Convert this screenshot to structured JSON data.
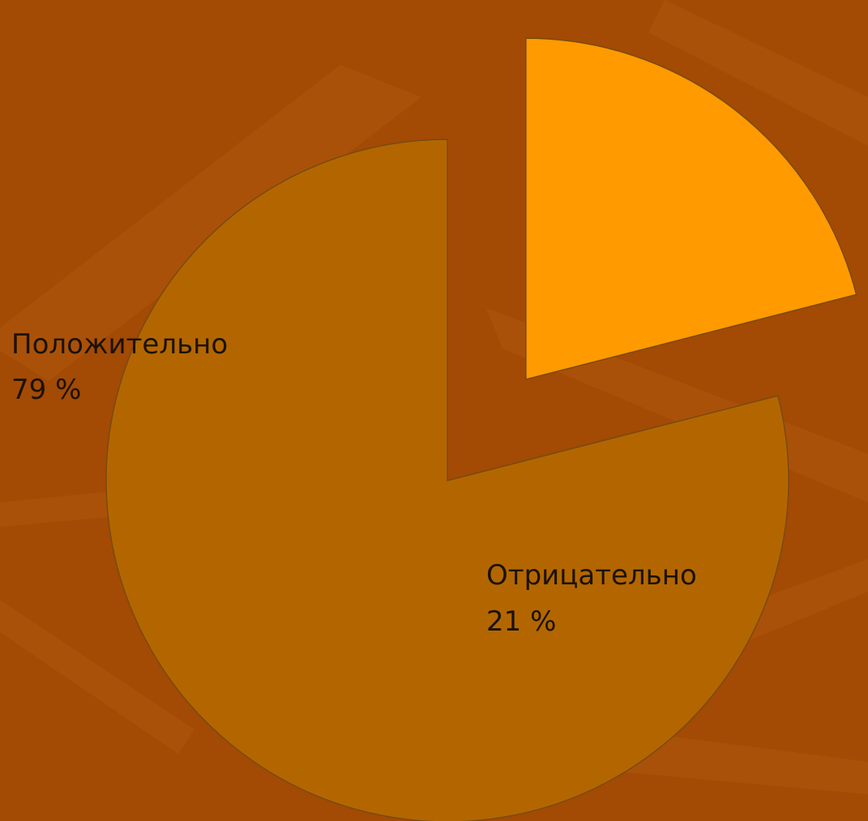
{
  "chart_data": {
    "type": "pie",
    "slices": [
      {
        "label": "Положительно",
        "value": 79,
        "value_label": "79 %",
        "color": "#b36600"
      },
      {
        "label": "Отрицательно",
        "value": 21,
        "value_label": "21 %",
        "color": "#ff9a00"
      }
    ],
    "title": "",
    "legend": "none"
  },
  "colors": {
    "background": "#a34a05",
    "background_streak": "#b35a10",
    "slice_stroke": "#7a4a10",
    "label_text": "#1b1206"
  }
}
